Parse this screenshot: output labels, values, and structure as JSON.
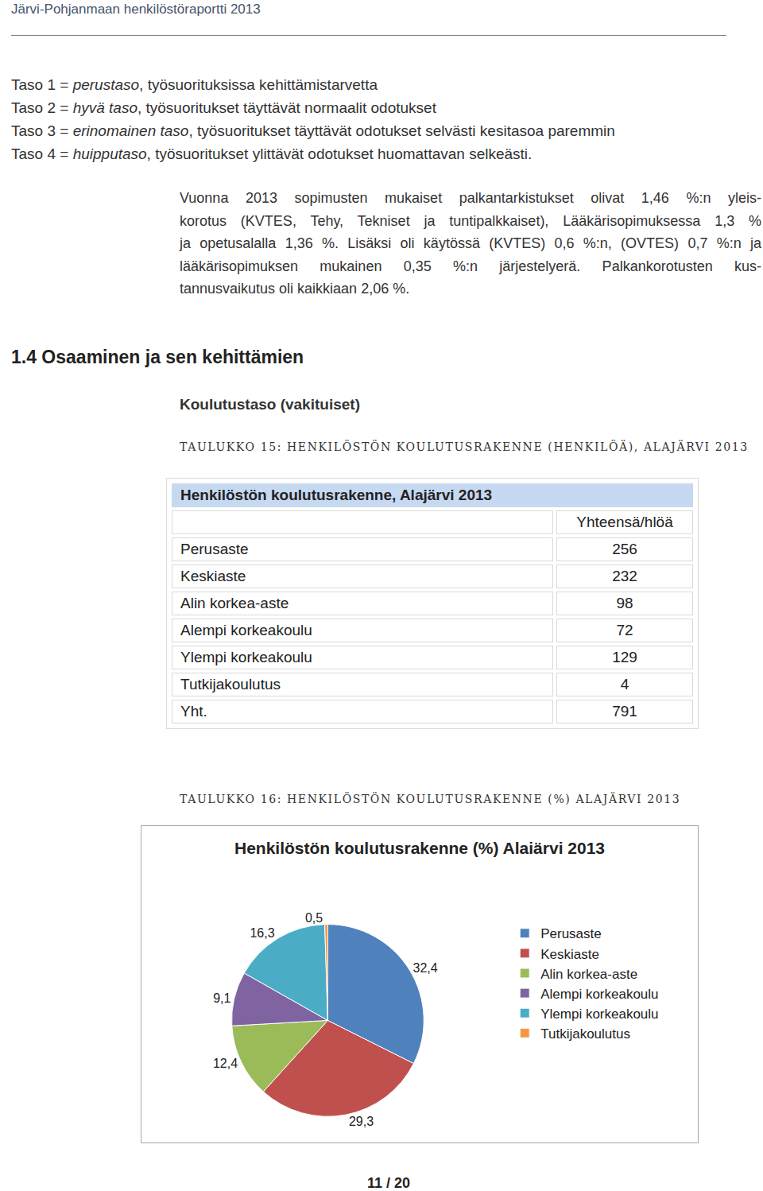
{
  "header": "Järvi-Pohjanmaan henkilöstöraportti 2013",
  "levels": [
    {
      "prefix": "Taso 1 =",
      "term": "perustaso",
      "rest": ", työsuorituksissa kehittämistarvetta"
    },
    {
      "prefix": "Taso 2 =",
      "term": "hyvä taso",
      "rest": ", työsuoritukset täyttävät normaalit odotukset"
    },
    {
      "prefix": "Taso 3 =",
      "term": "erinomainen taso",
      "rest": ", työsuoritukset täyttävät odotukset selvästi kesitasoa paremmin"
    },
    {
      "prefix": "Taso 4 =",
      "term": "huipputaso",
      "rest": ", työsuoritukset ylittävät odotukset huomattavan selkeästi."
    }
  ],
  "paragraph": [
    "Vuonna 2013 sopimusten mukaiset palkantarkistukset olivat 1,46 %:n yleis-",
    "korotus (KVTES, Tehy, Tekniset ja tuntipalkkaiset), Lääkärisopimuksessa 1,3 %",
    "ja opetusalalla 1,36 %. Lisäksi oli käytössä (KVTES) 0,6 %:n, (OVTES) 0,7 %:n ja",
    "lääkärisopimuksen mukainen 0,35 %:n järjestelyerä. Palkankorotusten kus-",
    "tannusvaikutus oli kaikkiaan 2,06 %."
  ],
  "heading": "1.4 Osaaminen ja sen kehittämien",
  "subheading": "Koulutustaso (vakituiset)",
  "table_caption": "TAULUKKO 15: HENKILÖSTÖN KOULUTUSRAKENNE (HENKILÖÄ), ALAJÄRVI 2013",
  "table": {
    "title": "Henkilöstön koulutusrakenne, Alajärvi 2013",
    "column_header": "Yhteensä/hlöä",
    "rows": [
      [
        "Perusaste",
        "256"
      ],
      [
        "Keskiaste",
        "232"
      ],
      [
        "Alin korkea-aste",
        "98"
      ],
      [
        "Alempi korkeakoulu",
        "72"
      ],
      [
        "Ylempi korkeakoulu",
        "129"
      ],
      [
        "Tutkijakoulutus",
        "4"
      ],
      [
        "Yht.",
        "791"
      ]
    ]
  },
  "chart_caption": "TAULUKKO 16: HENKILÖSTÖN KOULUTUSRAKENNE (%) ALAJÄRVI 2013",
  "chart_data": {
    "type": "pie",
    "title": "Henkilöstön koulutusrakenne (%) Alaiärvi 2013",
    "categories": [
      "Perusaste",
      "Keskiaste",
      "Alin korkea-aste",
      "Alempi korkeakoulu",
      "Ylempi korkeakoulu",
      "Tutkijakoulutus"
    ],
    "values": [
      32.4,
      29.3,
      12.4,
      9.1,
      16.3,
      0.5
    ],
    "value_labels": [
      "32,4",
      "29,3",
      "12,4",
      "9,1",
      "16,3",
      "0,5"
    ],
    "colors": [
      "#4f81bd",
      "#c0504d",
      "#9bbb59",
      "#8064a2",
      "#4bacc6",
      "#f79646"
    ],
    "data_labels": true,
    "legend": "right"
  },
  "page_number": "11 / 20"
}
